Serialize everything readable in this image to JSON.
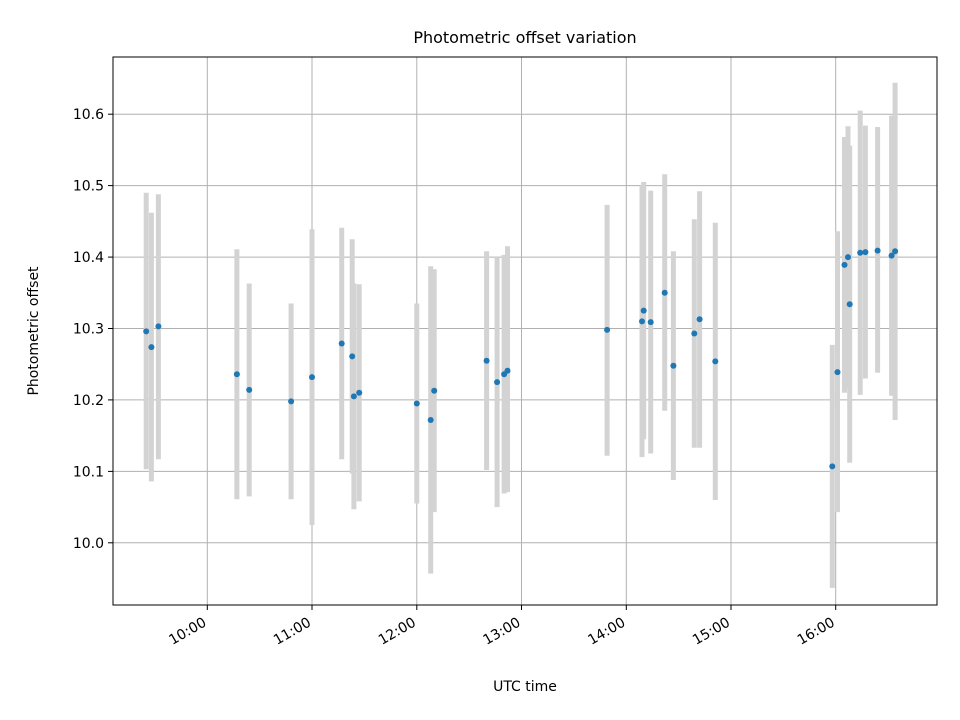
{
  "chart_data": {
    "type": "scatter",
    "title": "Photometric offset variation",
    "xlabel": "UTC time",
    "ylabel": "Photometric offset",
    "xlim": [
      "09:06",
      "16:58"
    ],
    "ylim": [
      9.913,
      10.68
    ],
    "grid": true,
    "x_ticks": [
      "10:00",
      "11:00",
      "12:00",
      "13:00",
      "14:00",
      "15:00",
      "16:00"
    ],
    "y_ticks": [
      10.0,
      10.1,
      10.2,
      10.3,
      10.4,
      10.5,
      10.6
    ],
    "y_tick_labels": [
      "10.0",
      "10.1",
      "10.2",
      "10.3",
      "10.4",
      "10.5",
      "10.6"
    ],
    "colors": {
      "point": "#1f77b4",
      "errorbar": "#d3d3d3",
      "grid": "#b0b0b0",
      "axis": "#000000"
    },
    "points": [
      {
        "x": "09:25",
        "y": 10.296,
        "low": 10.103,
        "high": 10.49
      },
      {
        "x": "09:28",
        "y": 10.274,
        "low": 10.086,
        "high": 10.462
      },
      {
        "x": "09:32",
        "y": 10.303,
        "low": 10.117,
        "high": 10.488
      },
      {
        "x": "10:17",
        "y": 10.236,
        "low": 10.061,
        "high": 10.411
      },
      {
        "x": "10:24",
        "y": 10.214,
        "low": 10.065,
        "high": 10.363
      },
      {
        "x": "10:48",
        "y": 10.198,
        "low": 10.061,
        "high": 10.335
      },
      {
        "x": "11:00",
        "y": 10.232,
        "low": 10.025,
        "high": 10.439
      },
      {
        "x": "11:17",
        "y": 10.279,
        "low": 10.117,
        "high": 10.441
      },
      {
        "x": "11:23",
        "y": 10.261,
        "low": 10.097,
        "high": 10.425
      },
      {
        "x": "11:24",
        "y": 10.205,
        "low": 10.047,
        "high": 10.363
      },
      {
        "x": "11:27",
        "y": 10.21,
        "low": 10.058,
        "high": 10.362
      },
      {
        "x": "12:00",
        "y": 10.195,
        "low": 10.055,
        "high": 10.335
      },
      {
        "x": "12:08",
        "y": 10.172,
        "low": 9.957,
        "high": 10.387
      },
      {
        "x": "12:10",
        "y": 10.213,
        "low": 10.043,
        "high": 10.383
      },
      {
        "x": "12:40",
        "y": 10.255,
        "low": 10.102,
        "high": 10.408
      },
      {
        "x": "12:46",
        "y": 10.225,
        "low": 10.05,
        "high": 10.4
      },
      {
        "x": "12:50",
        "y": 10.236,
        "low": 10.069,
        "high": 10.403
      },
      {
        "x": "12:52",
        "y": 10.241,
        "low": 10.071,
        "high": 10.415
      },
      {
        "x": "13:49",
        "y": 10.298,
        "low": 10.122,
        "high": 10.473
      },
      {
        "x": "14:09",
        "y": 10.31,
        "low": 10.12,
        "high": 10.5
      },
      {
        "x": "14:10",
        "y": 10.325,
        "low": 10.145,
        "high": 10.505
      },
      {
        "x": "14:14",
        "y": 10.309,
        "low": 10.125,
        "high": 10.493
      },
      {
        "x": "14:22",
        "y": 10.35,
        "low": 10.185,
        "high": 10.516
      },
      {
        "x": "14:27",
        "y": 10.248,
        "low": 10.088,
        "high": 10.408
      },
      {
        "x": "14:39",
        "y": 10.293,
        "low": 10.133,
        "high": 10.453
      },
      {
        "x": "14:42",
        "y": 10.313,
        "low": 10.133,
        "high": 10.492
      },
      {
        "x": "14:51",
        "y": 10.254,
        "low": 10.06,
        "high": 10.448
      },
      {
        "x": "15:58",
        "y": 10.107,
        "low": 9.937,
        "high": 10.277
      },
      {
        "x": "16:01",
        "y": 10.239,
        "low": 10.043,
        "high": 10.436
      },
      {
        "x": "16:05",
        "y": 10.389,
        "low": 10.21,
        "high": 10.568
      },
      {
        "x": "16:07",
        "y": 10.4,
        "low": 10.217,
        "high": 10.583
      },
      {
        "x": "16:08",
        "y": 10.334,
        "low": 10.112,
        "high": 10.556
      },
      {
        "x": "16:14",
        "y": 10.406,
        "low": 10.207,
        "high": 10.605
      },
      {
        "x": "16:17",
        "y": 10.407,
        "low": 10.23,
        "high": 10.584
      },
      {
        "x": "16:24",
        "y": 10.409,
        "low": 10.238,
        "high": 10.582
      },
      {
        "x": "16:32",
        "y": 10.402,
        "low": 10.206,
        "high": 10.598
      },
      {
        "x": "16:34",
        "y": 10.408,
        "low": 10.172,
        "high": 10.644
      }
    ]
  }
}
